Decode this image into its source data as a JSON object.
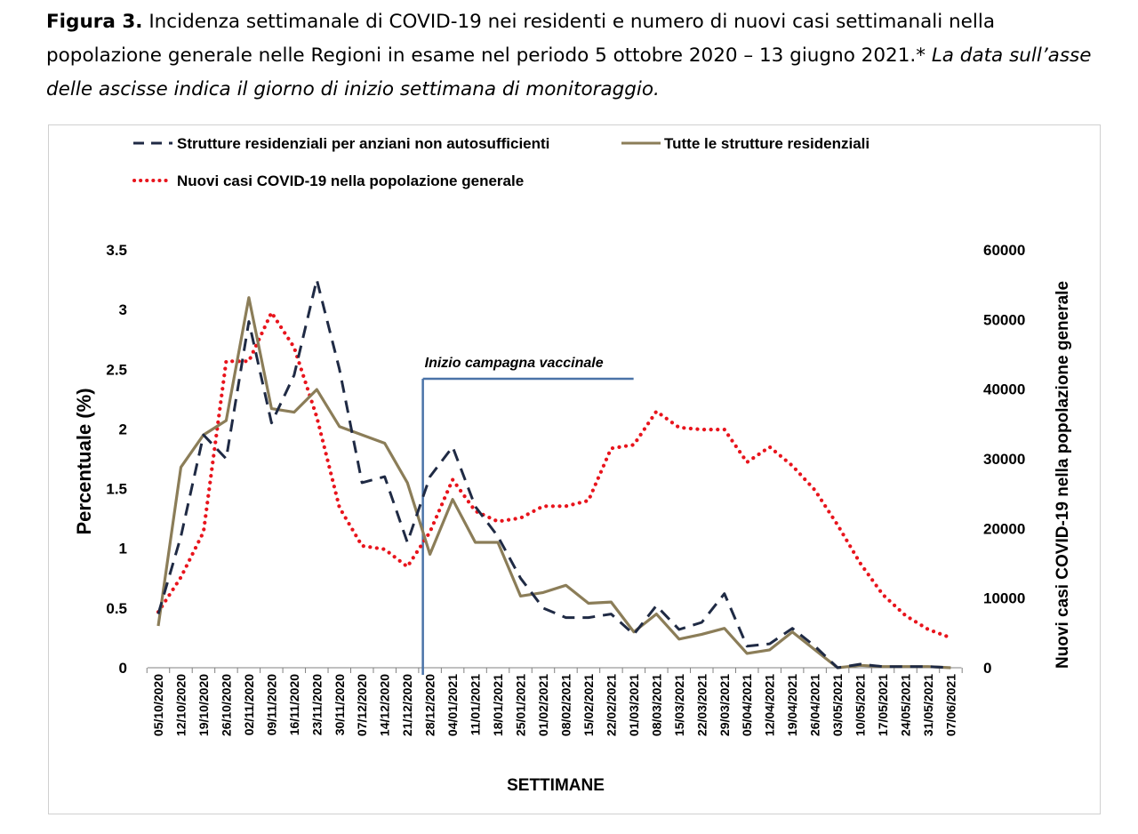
{
  "caption": {
    "label": "Figura 3.",
    "text": " Incidenza settimanale di COVID-19 nei residenti e numero di nuovi casi settimanali nella popolazione generale nelle Regioni in esame nel periodo 5 ottobre 2020 – 13 giugno 2021.*",
    "italic": " La data sull’asse delle ascisse indica il giorno di inizio settimana di monitoraggio."
  },
  "chart_data": {
    "type": "line",
    "title": "",
    "xlabel": "SETTIMANE",
    "ylabel": "Percentuale (%)",
    "y2label": "Nuovi casi COVID-19 nella popolazione generale",
    "ylim": [
      0,
      3.5
    ],
    "y2lim": [
      0,
      60000
    ],
    "yticks": [
      "0",
      "0.5",
      "1",
      "1.5",
      "2",
      "2.5",
      "3",
      "3.5"
    ],
    "y2ticks": [
      "0",
      "10000",
      "20000",
      "30000",
      "40000",
      "50000",
      "60000"
    ],
    "legend_position": "top",
    "annotation": {
      "text": "Inizio campagna vaccinale",
      "at": "28/12/2020"
    },
    "categories": [
      "05/10/2020",
      "12/10/2020",
      "19/10/2020",
      "26/10/2020",
      "02/11/2020",
      "09/11/2020",
      "16/11/2020",
      "23/11/2020",
      "30/11/2020",
      "07/12/2020",
      "14/12/2020",
      "21/12/2020",
      "28/12/2020",
      "04/01/2021",
      "11/01/2021",
      "18/01/2021",
      "25/01/2021",
      "01/02/2021",
      "08/02/2021",
      "15/02/2021",
      "22/02/2021",
      "01/03/2021",
      "08/03/2021",
      "15/03/2021",
      "22/03/2021",
      "29/03/2021",
      "05/04/2021",
      "12/04/2021",
      "19/04/2021",
      "26/04/2021",
      "03/05/2021",
      "10/05/2021",
      "17/05/2021",
      "24/05/2021",
      "31/05/2021",
      "07/06/2021"
    ],
    "series": [
      {
        "name": "Strutture residenziali per anziani non autosufficienti",
        "axis": "left",
        "style": "dashed",
        "color": "#1f2a44",
        "values": [
          0.45,
          1.1,
          1.95,
          1.75,
          2.9,
          2.05,
          2.45,
          3.25,
          2.5,
          1.55,
          1.6,
          1.05,
          1.6,
          1.85,
          1.35,
          1.1,
          0.75,
          0.5,
          0.42,
          0.42,
          0.45,
          0.28,
          0.52,
          0.32,
          0.38,
          0.62,
          0.18,
          0.2,
          0.33,
          0.18,
          0.0,
          0.03,
          0.01,
          0.01,
          0.01,
          0.0
        ]
      },
      {
        "name": "Tutte le strutture residenziali",
        "axis": "left",
        "style": "solid",
        "color": "#8b7d58",
        "values": [
          0.35,
          1.68,
          1.95,
          2.07,
          3.1,
          2.17,
          2.14,
          2.33,
          2.02,
          1.95,
          1.88,
          1.55,
          0.95,
          1.41,
          1.05,
          1.05,
          0.6,
          0.63,
          0.69,
          0.54,
          0.55,
          0.3,
          0.45,
          0.24,
          0.28,
          0.33,
          0.12,
          0.15,
          0.3,
          0.15,
          0.0,
          0.02,
          0.01,
          0.01,
          0.01,
          0.0
        ]
      },
      {
        "name": "Nuovi casi COVID-19 nella popolazione generale",
        "axis": "right",
        "style": "dotted",
        "color": "#e8141c",
        "values": [
          8000,
          13000,
          19500,
          44000,
          44000,
          51000,
          46000,
          36000,
          23000,
          17500,
          17000,
          14500,
          19500,
          27000,
          22500,
          21000,
          21500,
          23200,
          23200,
          24000,
          31500,
          32000,
          36800,
          34500,
          34200,
          34200,
          29500,
          31700,
          29000,
          25500,
          20500,
          15000,
          10500,
          7500,
          5500,
          4300
        ]
      }
    ]
  }
}
